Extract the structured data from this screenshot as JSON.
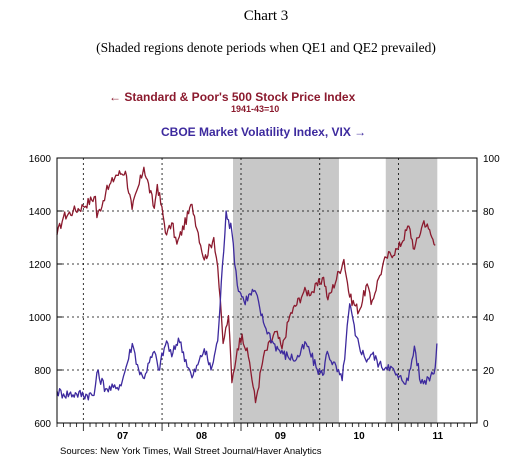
{
  "header": {
    "title": "Chart 3",
    "subtitle": "(Shaded regions denote periods when QE1 and QE2 prevailed)"
  },
  "legend": {
    "sp_label": "Standard & Poor's 500 Stock Price Index",
    "sp_sub": "1941-43=10",
    "vix_label": "CBOE Market Volatility Index, VIX"
  },
  "footer": {
    "source": "Sources:  New York Times, Wall Street Journal/Haver Analytics"
  },
  "colors": {
    "sp": "#8b1a2e",
    "vix": "#3d2a9e",
    "shade": "#c8c8c8"
  },
  "chart_data": {
    "type": "line",
    "title": "Chart 3",
    "subtitle": "(Shaded regions denote periods when QE1 and QE2 prevailed)",
    "x_ticks": [
      "07",
      "08",
      "09",
      "10",
      "11"
    ],
    "x_range": [
      "2006-09-01",
      "2011-12-31"
    ],
    "y_left": {
      "range": [
        600,
        1600
      ],
      "ticks": [
        600,
        800,
        1000,
        1200,
        1400,
        1600
      ]
    },
    "y_right": {
      "range": [
        0,
        100
      ],
      "ticks": [
        0,
        20,
        40,
        60,
        80,
        100
      ]
    },
    "grid": true,
    "shaded_regions": [
      {
        "label": "QE1",
        "start": "2008-11-25",
        "end": "2010-03-31"
      },
      {
        "label": "QE2",
        "start": "2010-11-03",
        "end": "2011-06-30"
      }
    ],
    "series": [
      {
        "name": "Standard & Poor's 500 Stock Price Index",
        "axis": "left",
        "color": "#8b1a2e",
        "points": [
          [
            "2006-09-01",
            1310
          ],
          [
            "2006-10-01",
            1378
          ],
          [
            "2006-11-15",
            1400
          ],
          [
            "2007-01-01",
            1418
          ],
          [
            "2007-02-26",
            1455
          ],
          [
            "2007-03-05",
            1375
          ],
          [
            "2007-04-15",
            1470
          ],
          [
            "2007-06-01",
            1535
          ],
          [
            "2007-07-15",
            1550
          ],
          [
            "2007-08-15",
            1406
          ],
          [
            "2007-10-09",
            1565
          ],
          [
            "2007-11-26",
            1410
          ],
          [
            "2007-12-10",
            1500
          ],
          [
            "2008-01-22",
            1310
          ],
          [
            "2008-02-15",
            1355
          ],
          [
            "2008-03-10",
            1275
          ],
          [
            "2008-05-19",
            1425
          ],
          [
            "2008-07-15",
            1215
          ],
          [
            "2008-08-28",
            1300
          ],
          [
            "2008-09-15",
            1190
          ],
          [
            "2008-10-10",
            900
          ],
          [
            "2008-11-04",
            1005
          ],
          [
            "2008-11-20",
            752
          ],
          [
            "2008-12-15",
            880
          ],
          [
            "2009-01-06",
            935
          ],
          [
            "2009-02-10",
            830
          ],
          [
            "2009-03-09",
            677
          ],
          [
            "2009-04-15",
            850
          ],
          [
            "2009-06-12",
            945
          ],
          [
            "2009-07-10",
            880
          ],
          [
            "2009-08-15",
            1005
          ],
          [
            "2009-10-19",
            1095
          ],
          [
            "2009-11-30",
            1095
          ],
          [
            "2010-01-19",
            1150
          ],
          [
            "2010-02-08",
            1065
          ],
          [
            "2010-04-23",
            1217
          ],
          [
            "2010-05-20",
            1075
          ],
          [
            "2010-07-02",
            1022
          ],
          [
            "2010-08-09",
            1125
          ],
          [
            "2010-08-27",
            1047
          ],
          [
            "2010-10-01",
            1146
          ],
          [
            "2010-11-05",
            1225
          ],
          [
            "2010-12-31",
            1258
          ],
          [
            "2011-02-18",
            1343
          ],
          [
            "2011-03-16",
            1256
          ],
          [
            "2011-04-29",
            1363
          ],
          [
            "2011-05-20",
            1333
          ],
          [
            "2011-06-20",
            1270
          ]
        ]
      },
      {
        "name": "CBOE Market Volatility Index, VIX",
        "axis": "right",
        "color": "#3d2a9e",
        "points": [
          [
            "2006-09-01",
            12
          ],
          [
            "2006-10-01",
            11
          ],
          [
            "2006-12-01",
            11
          ],
          [
            "2007-02-20",
            10.5
          ],
          [
            "2007-03-05",
            19
          ],
          [
            "2007-04-15",
            13
          ],
          [
            "2007-06-01",
            13
          ],
          [
            "2007-07-01",
            16
          ],
          [
            "2007-08-16",
            30
          ],
          [
            "2007-09-15",
            20
          ],
          [
            "2007-10-05",
            17
          ],
          [
            "2007-11-26",
            27
          ],
          [
            "2007-12-15",
            20
          ],
          [
            "2008-01-22",
            31
          ],
          [
            "2008-02-15",
            25
          ],
          [
            "2008-03-17",
            32
          ],
          [
            "2008-05-19",
            17
          ],
          [
            "2008-06-15",
            22
          ],
          [
            "2008-07-15",
            28
          ],
          [
            "2008-08-15",
            20
          ],
          [
            "2008-09-15",
            31
          ],
          [
            "2008-10-24",
            80
          ],
          [
            "2008-11-20",
            72
          ],
          [
            "2008-12-15",
            52
          ],
          [
            "2009-01-15",
            46
          ],
          [
            "2009-03-06",
            50
          ],
          [
            "2009-04-15",
            38
          ],
          [
            "2009-06-01",
            30
          ],
          [
            "2009-07-15",
            26
          ],
          [
            "2009-09-15",
            24
          ],
          [
            "2009-10-30",
            30
          ],
          [
            "2009-12-15",
            21
          ],
          [
            "2010-01-15",
            18
          ],
          [
            "2010-02-05",
            27
          ],
          [
            "2010-04-15",
            16
          ],
          [
            "2010-05-20",
            45
          ],
          [
            "2010-06-15",
            33
          ],
          [
            "2010-08-01",
            24
          ],
          [
            "2010-09-01",
            26
          ],
          [
            "2010-10-15",
            21
          ],
          [
            "2010-11-15",
            22
          ],
          [
            "2010-12-31",
            17
          ],
          [
            "2011-02-15",
            16
          ],
          [
            "2011-03-16",
            29
          ],
          [
            "2011-04-15",
            15
          ],
          [
            "2011-05-20",
            17
          ],
          [
            "2011-06-20",
            21
          ],
          [
            "2011-06-28",
            30
          ]
        ]
      }
    ]
  }
}
